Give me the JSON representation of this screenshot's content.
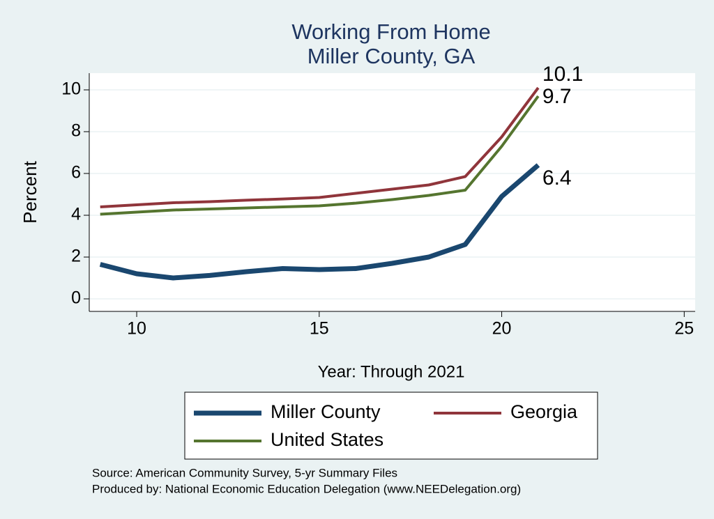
{
  "chart_data": {
    "type": "line",
    "title": "Working From Home",
    "subtitle": "Miller County, GA",
    "x_label": "Year: Through 2021",
    "y_label": "Percent",
    "x": [
      9,
      10,
      11,
      12,
      13,
      14,
      15,
      16,
      17,
      18,
      19,
      20,
      21
    ],
    "series": [
      {
        "name": "Miller County",
        "color": "#1a476f",
        "values": [
          1.65,
          1.2,
          1.0,
          1.12,
          1.3,
          1.45,
          1.4,
          1.45,
          1.7,
          2.0,
          2.6,
          4.9,
          6.4
        ]
      },
      {
        "name": "Georgia",
        "color": "#90353b",
        "values": [
          4.4,
          4.5,
          4.6,
          4.65,
          4.72,
          4.78,
          4.85,
          5.05,
          5.25,
          5.45,
          5.85,
          7.75,
          10.1
        ]
      },
      {
        "name": "United States",
        "color": "#55752f",
        "values": [
          4.05,
          4.15,
          4.25,
          4.3,
          4.35,
          4.4,
          4.45,
          4.58,
          4.75,
          4.95,
          5.2,
          7.3,
          9.7
        ]
      }
    ],
    "xlim": [
      8.7,
      25.3
    ],
    "xticks": [
      10,
      15,
      20,
      25
    ],
    "ylim": [
      -0.6,
      10.8
    ],
    "yticks": [
      0,
      2,
      4,
      6,
      8,
      10
    ],
    "grid": true,
    "notes": [
      "Source: American Community Survey, 5-yr Summary Files",
      "Produced by: National Economic Education Delegation (www.NEEDelegation.org)"
    ]
  }
}
